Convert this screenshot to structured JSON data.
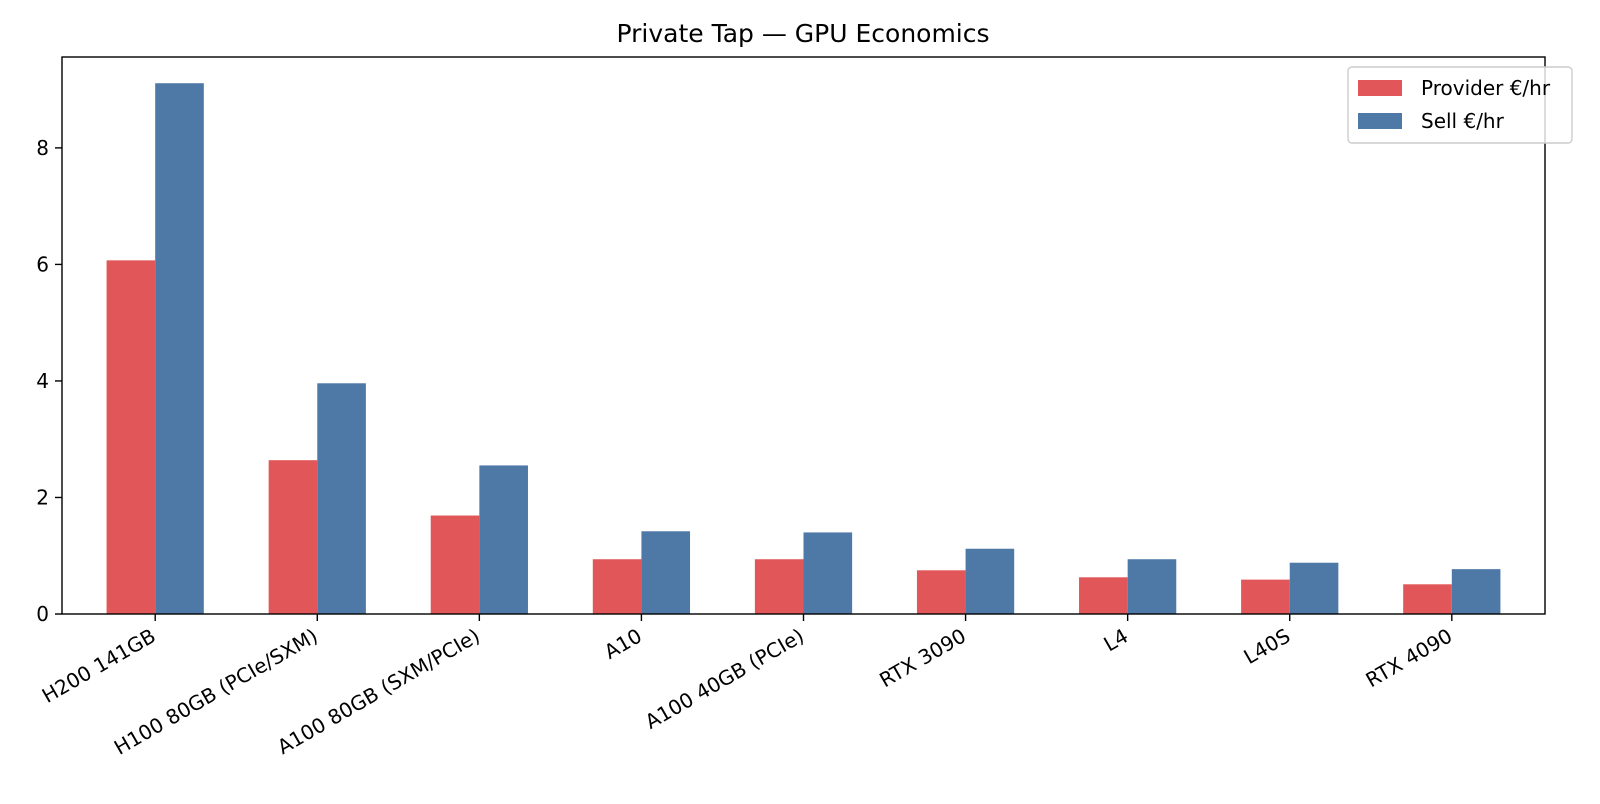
{
  "chart_data": {
    "type": "bar",
    "title": "Private Tap — GPU Economics",
    "xlabel": "",
    "ylabel": "",
    "categories": [
      "H200 141GB",
      "H100 80GB (PCIe/SXM)",
      "A100 80GB (SXM/PCIe)",
      "A10",
      "A100 40GB (PCIe)",
      "RTX 3090",
      "L4",
      "L40S",
      "RTX 4090"
    ],
    "series": [
      {
        "name": "Provider €/hr",
        "color": "#e15759",
        "values": [
          6.07,
          2.64,
          1.69,
          0.94,
          0.94,
          0.75,
          0.63,
          0.59,
          0.51
        ]
      },
      {
        "name": "Sell €/hr",
        "color": "#4e79a7",
        "values": [
          9.11,
          3.96,
          2.55,
          1.42,
          1.4,
          1.12,
          0.94,
          0.88,
          0.77
        ]
      }
    ],
    "ylim": [
      0,
      9.56
    ],
    "yticks": [
      0,
      2,
      4,
      6,
      8
    ],
    "grid": false,
    "legend_position": "top-right"
  }
}
